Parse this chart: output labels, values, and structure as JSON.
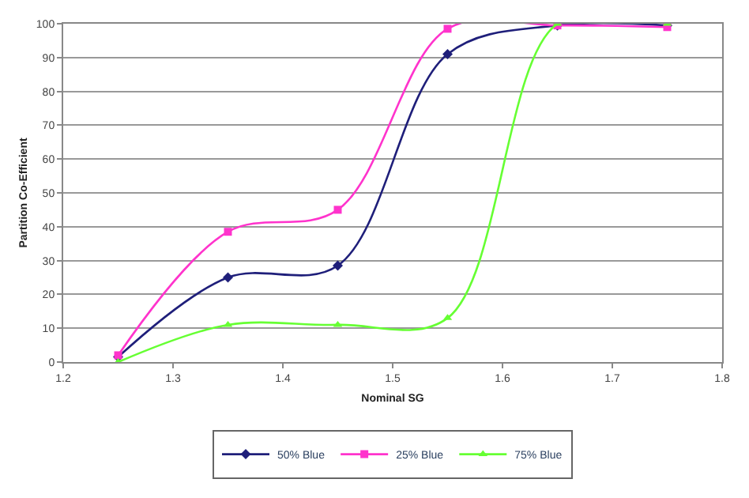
{
  "chart_data": {
    "type": "line",
    "xlabel": "Nominal SG",
    "ylabel": "Partition Co-Efficient",
    "x": [
      1.25,
      1.35,
      1.45,
      1.55,
      1.65,
      1.75
    ],
    "series": [
      {
        "name": "50% Blue",
        "color": "#1f1f7a",
        "marker": "diamond",
        "values": [
          1.5,
          25,
          28.5,
          91,
          99.5,
          99.5
        ]
      },
      {
        "name": "25% Blue",
        "color": "#ff33cc",
        "marker": "square",
        "values": [
          2,
          38.5,
          45,
          98.5,
          99.5,
          99
        ]
      },
      {
        "name": "75% Blue",
        "color": "#66ff33",
        "marker": "triangle",
        "values": [
          0,
          11,
          11,
          13,
          100,
          100
        ]
      }
    ],
    "xlim": [
      1.2,
      1.8
    ],
    "xticks": [
      1.2,
      1.3,
      1.4,
      1.5,
      1.6,
      1.7,
      1.8
    ],
    "ylim": [
      0,
      100
    ],
    "yticks": [
      0,
      10,
      20,
      30,
      40,
      50,
      60,
      70,
      80,
      90,
      100
    ],
    "grid": "y",
    "legend": "bottom"
  }
}
